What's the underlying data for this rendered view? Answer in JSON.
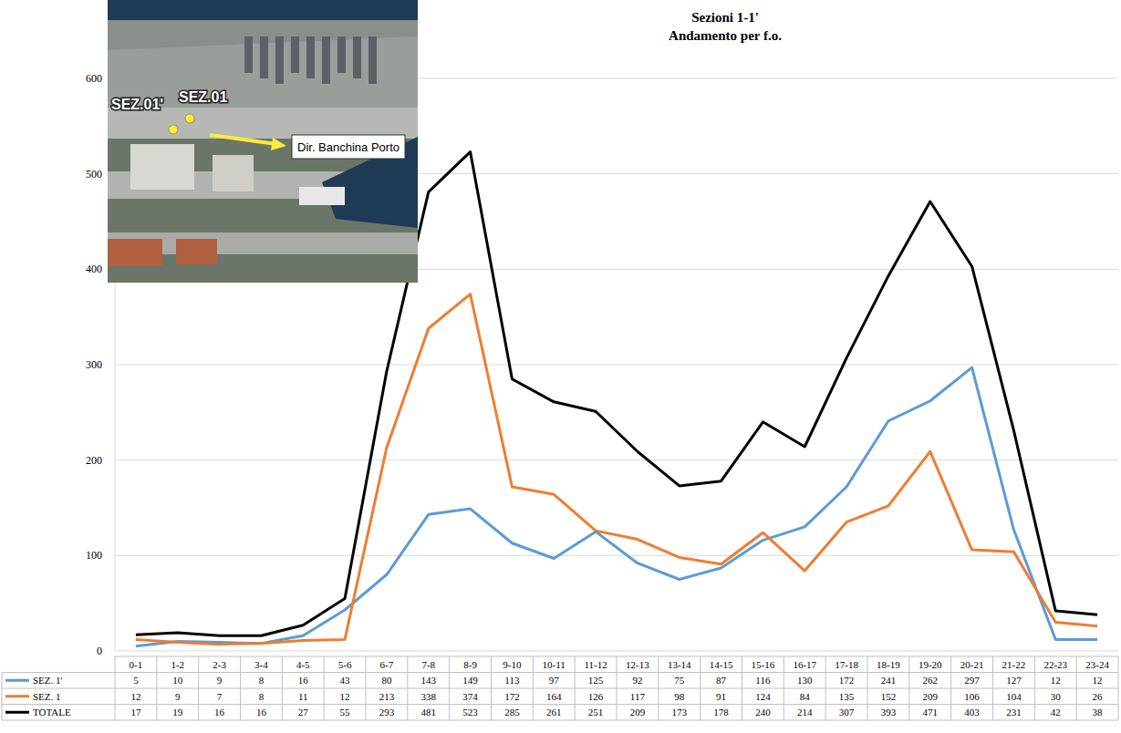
{
  "chart_data": {
    "type": "line",
    "title": "Sezioni 1-1'",
    "subtitle": "Andamento per f.o.",
    "annotations": [
      "SEZ.01'",
      "SEZ.01",
      "Dir. Banchina Porto"
    ],
    "categories": [
      "0-1",
      "1-2",
      "2-3",
      "3-4",
      "4-5",
      "5-6",
      "6-7",
      "7-8",
      "8-9",
      "9-10",
      "10-11",
      "11-12",
      "12-13",
      "13-14",
      "14-15",
      "15-16",
      "16-17",
      "17-18",
      "18-19",
      "19-20",
      "20-21",
      "21-22",
      "22-23",
      "23-24"
    ],
    "series": [
      {
        "name": "SEZ. 1'",
        "color": "#5b9bd5",
        "values": [
          5,
          10,
          9,
          8,
          16,
          43,
          80,
          143,
          149,
          113,
          97,
          125,
          92,
          75,
          87,
          116,
          130,
          172,
          241,
          262,
          297,
          127,
          12,
          12
        ]
      },
      {
        "name": "SEZ. 1",
        "color": "#ed7d31",
        "values": [
          12,
          9,
          7,
          8,
          11,
          12,
          213,
          338,
          374,
          172,
          164,
          126,
          117,
          98,
          91,
          124,
          84,
          135,
          152,
          209,
          106,
          104,
          30,
          26
        ]
      },
      {
        "name": "TOTALE",
        "color": "#000000",
        "values": [
          17,
          19,
          16,
          16,
          27,
          55,
          293,
          481,
          523,
          285,
          261,
          251,
          209,
          173,
          178,
          240,
          214,
          307,
          393,
          471,
          403,
          231,
          42,
          38
        ]
      }
    ],
    "ylim": [
      0,
      600
    ],
    "yticks": [
      0,
      100,
      200,
      300,
      400,
      500,
      600
    ],
    "grid": true,
    "data_labels": true
  }
}
